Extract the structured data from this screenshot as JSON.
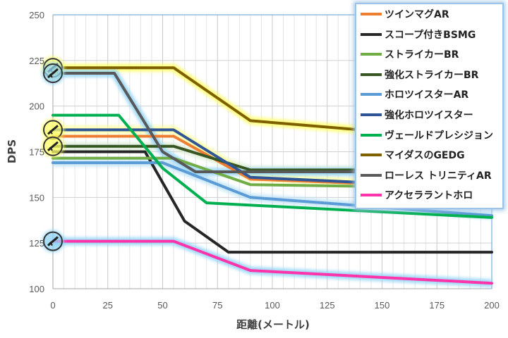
{
  "chart_data": {
    "type": "line",
    "xlabel": "距離(メートル)",
    "ylabel": "DPS",
    "xlim": [
      0,
      200
    ],
    "ylim": [
      100,
      250
    ],
    "x_ticks": [
      0,
      25,
      50,
      75,
      100,
      125,
      150,
      175,
      200
    ],
    "y_ticks": [
      100,
      125,
      150,
      175,
      200,
      225,
      250
    ],
    "grid": true,
    "legend_position": "top-right",
    "series": [
      {
        "name": "ツインマグAR",
        "color": "#ed7d31",
        "points": [
          [
            0,
            183.5
          ],
          [
            55,
            183.5
          ],
          [
            90,
            160
          ],
          [
            200,
            155
          ]
        ]
      },
      {
        "name": "スコープ付きBSMG",
        "color": "#262626",
        "points": [
          [
            0,
            175
          ],
          [
            42,
            175
          ],
          [
            60,
            137
          ],
          [
            80,
            120
          ],
          [
            200,
            120
          ]
        ]
      },
      {
        "name": "ストライカーBR",
        "color": "#70ad47",
        "points": [
          [
            0,
            171.5
          ],
          [
            55,
            171.5
          ],
          [
            90,
            157
          ],
          [
            200,
            155
          ]
        ]
      },
      {
        "name": "強化ストライカーBR",
        "color": "#375623",
        "points": [
          [
            0,
            178
          ],
          [
            55,
            178
          ],
          [
            90,
            165
          ],
          [
            200,
            165
          ]
        ]
      },
      {
        "name": "ホロツイスターAR",
        "color": "#5b9bd5",
        "points": [
          [
            0,
            169
          ],
          [
            50,
            169
          ],
          [
            90,
            150
          ],
          [
            200,
            140
          ]
        ]
      },
      {
        "name": "強化ホロツイスター",
        "color": "#2f5597",
        "points": [
          [
            0,
            187
          ],
          [
            55,
            187
          ],
          [
            90,
            161
          ],
          [
            200,
            155
          ]
        ]
      },
      {
        "name": "ヴェールドプレシジョン",
        "color": "#00b050",
        "points": [
          [
            0,
            195
          ],
          [
            30,
            195
          ],
          [
            50,
            166
          ],
          [
            70,
            147
          ],
          [
            200,
            139
          ]
        ]
      },
      {
        "name": "マイダスのGEDG",
        "color": "#7f6000",
        "points": [
          [
            0,
            221
          ],
          [
            55,
            221
          ],
          [
            90,
            192
          ],
          [
            150,
            186
          ],
          [
            200,
            186
          ]
        ]
      },
      {
        "name": "ローレス トリニティAR",
        "color": "#595959",
        "points": [
          [
            0,
            218
          ],
          [
            28,
            218
          ],
          [
            50,
            175
          ],
          [
            65,
            164
          ],
          [
            200,
            164
          ]
        ]
      },
      {
        "name": "アクセララントホロ",
        "color": "#ff33aa",
        "points": [
          [
            0,
            126
          ],
          [
            55,
            126
          ],
          [
            90,
            110
          ],
          [
            200,
            103
          ]
        ]
      }
    ],
    "markers": [
      {
        "x": 0,
        "y": 221,
        "ring": "#ffff66"
      },
      {
        "x": 0,
        "y": 218,
        "ring": "#8fd3f5"
      },
      {
        "x": 0,
        "y": 187,
        "ring": "#ffff66"
      },
      {
        "x": 0,
        "y": 178,
        "ring": "#ffff66"
      },
      {
        "x": 0,
        "y": 126,
        "ring": "#8fd3f5"
      }
    ]
  }
}
